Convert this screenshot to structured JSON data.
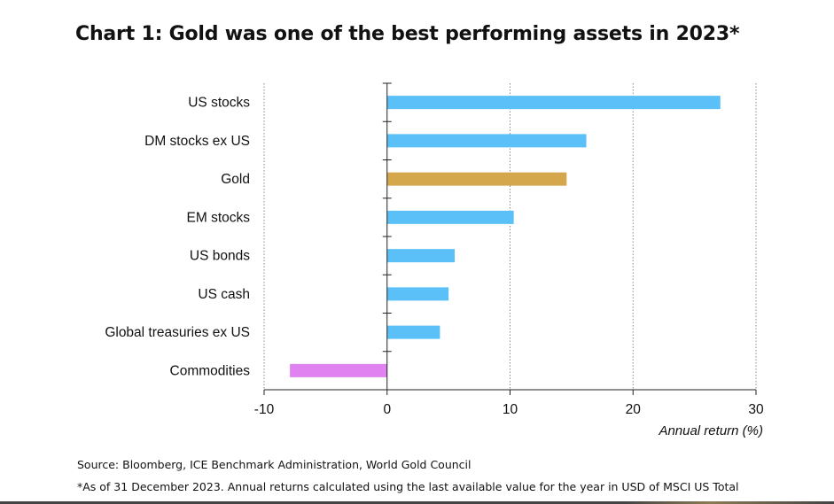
{
  "title": "Chart 1: Gold was one of the best performing assets in 2023*",
  "chart_data": {
    "type": "bar",
    "orientation": "horizontal",
    "categories": [
      "US stocks",
      "DM stocks ex US",
      "Gold",
      "EM stocks",
      "US bonds",
      "US cash",
      "Global treasuries ex US",
      "Commodities"
    ],
    "values": [
      27.1,
      16.2,
      14.6,
      10.3,
      5.5,
      5.0,
      4.3,
      -7.9
    ],
    "bar_colors": [
      "#5bc0f8",
      "#5bc0f8",
      "#d4a74c",
      "#5bc0f8",
      "#5bc0f8",
      "#5bc0f8",
      "#5bc0f8",
      "#e082f0"
    ],
    "xlim": [
      -10,
      30
    ],
    "xticks": [
      -10,
      0,
      10,
      20,
      30
    ],
    "xlabel": "Annual return (%)",
    "ylabel": "",
    "grid": "vertical-dotted"
  },
  "footnotes": {
    "source": "Source: Bloomberg, ICE Benchmark Administration, World Gold Council",
    "note": "*As of 31 December 2023. Annual returns calculated using the last available value for the year in USD of MSCI US Total"
  }
}
